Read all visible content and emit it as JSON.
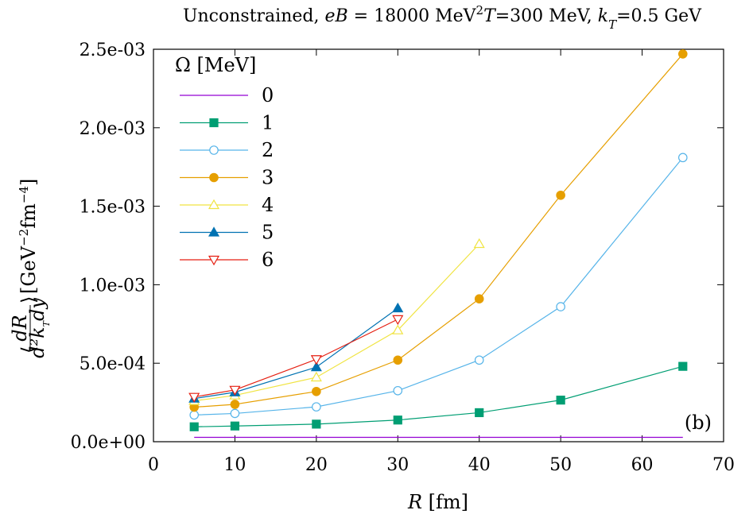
{
  "chart_data": {
    "type": "line",
    "title": "Unconstrained, eB = 18000 MeV², T=300 MeV, k_T=0.5 GeV",
    "title_parts": {
      "prefix": "Unconstrained, ",
      "eB_sym": "eB",
      "eB_val": " = 18000 MeV",
      "eB_exp": "2",
      "T_sym": "T",
      "T_val": "=300 MeV, ",
      "k_sym": "k",
      "k_sub": "T",
      "k_val": "=0.5 GeV"
    },
    "xlabel": "R [fm]",
    "xlabel_parts": {
      "sym": "R",
      "unit": " [fm]"
    },
    "ylabel": "⟨dR/(d²k_T dy)⟩ [GeV⁻²fm⁻⁴]",
    "ylabel_parts": {
      "open": "⟨",
      "num": "dR",
      "den": "d²k",
      "den_sub": "T",
      "den_end": "dy",
      "close": "⟩",
      "unit1": "[GeV",
      "exp1": "−2",
      "unit2": "fm",
      "exp2": "−4",
      "unit3": "]"
    },
    "xlim": [
      0,
      70
    ],
    "ylim": [
      0,
      0.0025
    ],
    "x_ticks": [
      0,
      10,
      20,
      30,
      40,
      50,
      60,
      70
    ],
    "x_tick_labels": [
      "0",
      "10",
      "20",
      "30",
      "40",
      "50",
      "60",
      "70"
    ],
    "y_ticks": [
      0,
      0.0005,
      0.001,
      0.0015,
      0.002,
      0.0025
    ],
    "y_tick_labels": [
      "0.0e+00",
      "5.0e-04",
      "1.0e-03",
      "1.5e-03",
      "2.0e-03",
      "2.5e-03"
    ],
    "legend_title": "Ω [MeV]",
    "legend_position": "top-left",
    "panel_label": "(b)",
    "grid": false,
    "series": [
      {
        "name": "0",
        "color": "#9400d3",
        "marker": "none",
        "x": [
          5,
          65
        ],
        "y": [
          2.8e-05,
          2.8e-05
        ]
      },
      {
        "name": "1",
        "color": "#009e73",
        "marker": "square-filled",
        "x": [
          5,
          10,
          20,
          30,
          40,
          50,
          65
        ],
        "y": [
          9.5e-05,
          0.0001,
          0.000112,
          0.000138,
          0.000185,
          0.000265,
          0.00048
        ]
      },
      {
        "name": "2",
        "color": "#56b4e9",
        "marker": "circle-open",
        "x": [
          5,
          10,
          20,
          30,
          40,
          50,
          65
        ],
        "y": [
          0.00017,
          0.00018,
          0.000222,
          0.000325,
          0.00052,
          0.00086,
          0.00181
        ]
      },
      {
        "name": "3",
        "color": "#e69f00",
        "marker": "circle-filled",
        "x": [
          5,
          10,
          20,
          30,
          40,
          50,
          65
        ],
        "y": [
          0.00022,
          0.000238,
          0.00032,
          0.00052,
          0.00091,
          0.00157,
          0.00247
        ]
      },
      {
        "name": "4",
        "color": "#f0e442",
        "marker": "triangle-open",
        "x": [
          5,
          10,
          20,
          30,
          40
        ],
        "y": [
          0.00026,
          0.000295,
          0.00041,
          0.00071,
          0.00126
        ]
      },
      {
        "name": "5",
        "color": "#0072b2",
        "marker": "triangle-filled",
        "x": [
          5,
          10,
          20,
          30
        ],
        "y": [
          0.000275,
          0.000315,
          0.000475,
          0.00085
        ]
      },
      {
        "name": "6",
        "color": "#e51e10",
        "marker": "triangle-down-open",
        "x": [
          5,
          10,
          20,
          30
        ],
        "y": [
          0.000285,
          0.00033,
          0.000525,
          0.00078
        ]
      }
    ]
  }
}
